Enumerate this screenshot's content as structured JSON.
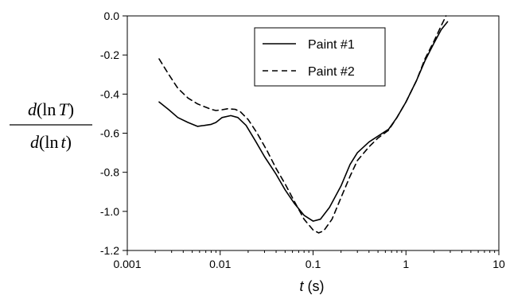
{
  "chart_data": {
    "type": "line",
    "xscale": "log",
    "xlim": [
      0.001,
      10
    ],
    "ylim": [
      -1.2,
      0.0
    ],
    "xticks": [
      0.001,
      0.01,
      0.1,
      1,
      10
    ],
    "xtick_labels": [
      "0.001",
      "0.01",
      "0.1",
      "1",
      "10"
    ],
    "yticks": [
      0.0,
      -0.2,
      -0.4,
      -0.6,
      -0.8,
      -1.0,
      -1.2
    ],
    "ytick_labels": [
      "0.0",
      "-0.2",
      "-0.4",
      "-0.6",
      "-0.8",
      "-1.0",
      "-1.2"
    ],
    "xlabel": {
      "var": "t",
      "unit": " (s)"
    },
    "ylabel": {
      "numerator": {
        "pre": "d",
        "paren_open": "(ln",
        "var": "T",
        "paren_close": ")"
      },
      "denominator": {
        "pre": "d",
        "paren_open": "(ln",
        "var": "t",
        "paren_close": ")"
      }
    },
    "grid": false,
    "legend_position": "top-right",
    "series": [
      {
        "name": "Paint #1",
        "style": "solid",
        "color": "#000000",
        "points": [
          [
            0.0022,
            -0.44
          ],
          [
            0.0028,
            -0.48
          ],
          [
            0.0035,
            -0.52
          ],
          [
            0.0045,
            -0.545
          ],
          [
            0.0057,
            -0.565
          ],
          [
            0.0068,
            -0.56
          ],
          [
            0.008,
            -0.555
          ],
          [
            0.009,
            -0.545
          ],
          [
            0.0105,
            -0.52
          ],
          [
            0.013,
            -0.51
          ],
          [
            0.0155,
            -0.52
          ],
          [
            0.019,
            -0.56
          ],
          [
            0.024,
            -0.64
          ],
          [
            0.03,
            -0.72
          ],
          [
            0.04,
            -0.81
          ],
          [
            0.05,
            -0.89
          ],
          [
            0.063,
            -0.96
          ],
          [
            0.08,
            -1.02
          ],
          [
            0.1,
            -1.05
          ],
          [
            0.12,
            -1.04
          ],
          [
            0.15,
            -0.98
          ],
          [
            0.2,
            -0.87
          ],
          [
            0.25,
            -0.76
          ],
          [
            0.3,
            -0.7
          ],
          [
            0.4,
            -0.645
          ],
          [
            0.5,
            -0.615
          ],
          [
            0.65,
            -0.58
          ],
          [
            0.8,
            -0.52
          ],
          [
            1.0,
            -0.44
          ],
          [
            1.3,
            -0.33
          ],
          [
            1.6,
            -0.23
          ],
          [
            2.0,
            -0.14
          ],
          [
            2.4,
            -0.07
          ],
          [
            2.8,
            -0.03
          ]
        ]
      },
      {
        "name": "Paint #2",
        "style": "dashed",
        "color": "#000000",
        "points": [
          [
            0.0022,
            -0.22
          ],
          [
            0.0028,
            -0.3
          ],
          [
            0.0035,
            -0.37
          ],
          [
            0.0045,
            -0.42
          ],
          [
            0.0057,
            -0.45
          ],
          [
            0.0068,
            -0.465
          ],
          [
            0.008,
            -0.478
          ],
          [
            0.009,
            -0.484
          ],
          [
            0.0105,
            -0.48
          ],
          [
            0.012,
            -0.475
          ],
          [
            0.0145,
            -0.478
          ],
          [
            0.0165,
            -0.49
          ],
          [
            0.02,
            -0.53
          ],
          [
            0.025,
            -0.6
          ],
          [
            0.032,
            -0.69
          ],
          [
            0.04,
            -0.78
          ],
          [
            0.05,
            -0.86
          ],
          [
            0.063,
            -0.95
          ],
          [
            0.08,
            -1.04
          ],
          [
            0.1,
            -1.095
          ],
          [
            0.115,
            -1.11
          ],
          [
            0.13,
            -1.1
          ],
          [
            0.16,
            -1.04
          ],
          [
            0.2,
            -0.93
          ],
          [
            0.25,
            -0.82
          ],
          [
            0.3,
            -0.74
          ],
          [
            0.4,
            -0.67
          ],
          [
            0.5,
            -0.625
          ],
          [
            0.65,
            -0.585
          ],
          [
            0.8,
            -0.52
          ],
          [
            1.0,
            -0.44
          ],
          [
            1.3,
            -0.33
          ],
          [
            1.6,
            -0.22
          ],
          [
            2.0,
            -0.13
          ],
          [
            2.4,
            -0.05
          ],
          [
            2.7,
            0.0
          ]
        ]
      }
    ]
  }
}
